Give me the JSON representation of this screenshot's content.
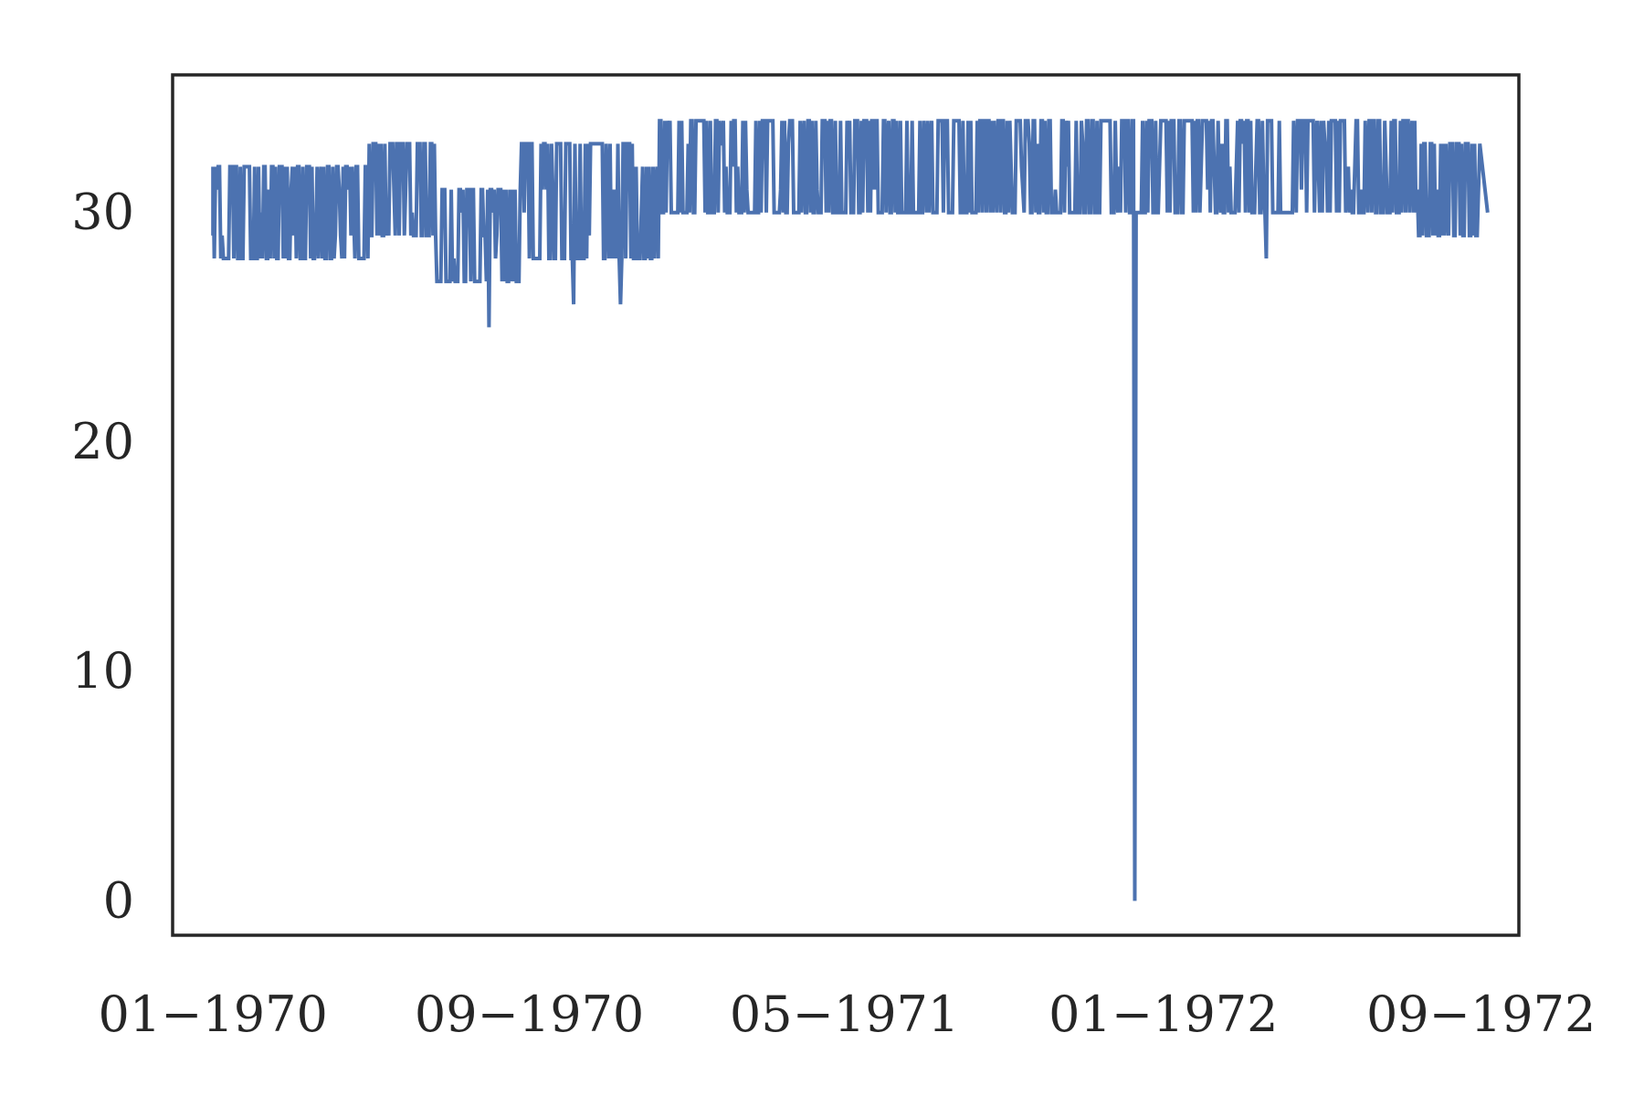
{
  "chart_data": {
    "type": "line",
    "title": "",
    "xlabel": "",
    "ylabel": "",
    "x_axis": {
      "type": "date",
      "range": [
        "1969-12-01",
        "1972-09-30"
      ],
      "ticks": [
        {
          "date": "1970-01-01",
          "label": "01−1970"
        },
        {
          "date": "1970-09-01",
          "label": "09−1970"
        },
        {
          "date": "1971-05-01",
          "label": "05−1971"
        },
        {
          "date": "1972-01-01",
          "label": "01−1972"
        },
        {
          "date": "1972-09-01",
          "label": "09−1972"
        }
      ]
    },
    "y_axis": {
      "range": [
        -1.5,
        36
      ],
      "ticks": [
        {
          "value": 0,
          "label": "0"
        },
        {
          "value": 10,
          "label": "10"
        },
        {
          "value": 20,
          "label": "20"
        },
        {
          "value": 30,
          "label": "30"
        }
      ]
    },
    "grid": false,
    "legend": "none",
    "series": [
      {
        "color": "#4c72b0",
        "segments": [
          {
            "start": "1970-01-01",
            "end": "1970-05-01",
            "low": 28,
            "high": 32
          },
          {
            "start": "1970-05-01",
            "end": "1970-06-22",
            "low": 29,
            "high": 33
          },
          {
            "start": "1970-06-22",
            "end": "1970-08-26",
            "low": 27,
            "high": 31
          },
          {
            "start": "1970-08-26",
            "end": "1970-11-20",
            "low": 28,
            "high": 33
          },
          {
            "start": "1970-11-20",
            "end": "1970-12-10",
            "low": 28,
            "high": 32
          },
          {
            "start": "1970-12-10",
            "end": "1972-07-15",
            "low": 30,
            "high": 34
          },
          {
            "start": "1972-07-15",
            "end": "1972-09-01",
            "low": 29,
            "high": 33
          }
        ],
        "dips": [
          {
            "date": "1970-08-01",
            "value": 25
          },
          {
            "date": "1970-10-05",
            "value": 26
          },
          {
            "date": "1970-11-10",
            "value": 26
          },
          {
            "date": "1972-03-20",
            "value": 28
          },
          {
            "date": "1971-12-10",
            "value": 0
          }
        ],
        "end_points": [
          {
            "date": "1970-01-01",
            "value": 29
          },
          {
            "date": "1972-09-06",
            "value": 30
          }
        ]
      }
    ]
  }
}
